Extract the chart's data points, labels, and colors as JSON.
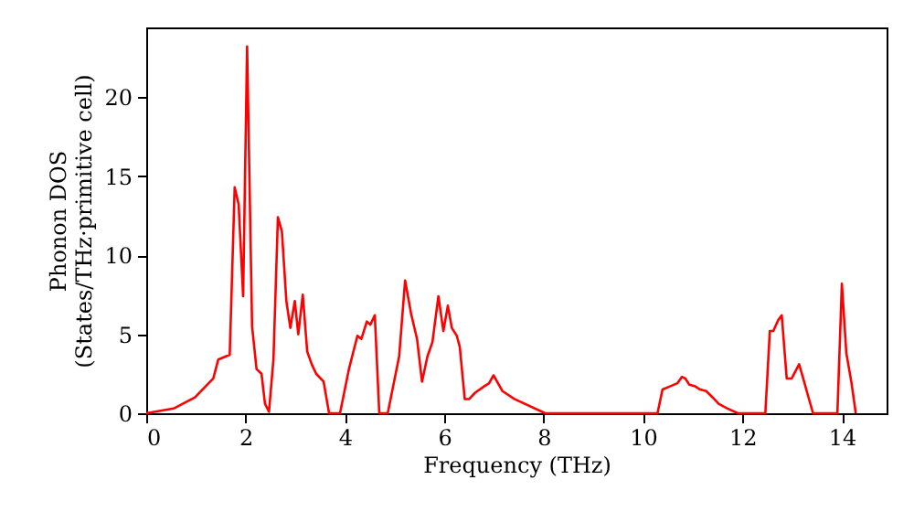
{
  "chart_data": {
    "type": "line",
    "xlabel": "Frequency (THz)",
    "ylabel": "Phonon DOS\n(States/THz·primitive cell)",
    "x": [
      0,
      0.55,
      0.98,
      1.35,
      1.45,
      1.68,
      1.78,
      1.86,
      1.95,
      2.03,
      2.13,
      2.22,
      2.32,
      2.39,
      2.47,
      2.56,
      2.65,
      2.73,
      2.82,
      2.9,
      2.99,
      3.06,
      3.15,
      3.24,
      3.33,
      3.42,
      3.57,
      3.68,
      3.9,
      4.08,
      4.25,
      4.33,
      4.44,
      4.51,
      4.6,
      4.69,
      4.86,
      5.09,
      5.21,
      5.33,
      5.45,
      5.55,
      5.66,
      5.76,
      5.88,
      5.98,
      6.07,
      6.15,
      6.25,
      6.31,
      6.41,
      6.5,
      6.62,
      6.8,
      6.9,
      6.99,
      7.17,
      7.41,
      8.03,
      10.29,
      10.39,
      10.54,
      10.69,
      10.78,
      10.85,
      10.93,
      11.05,
      11.15,
      11.27,
      11.4,
      11.52,
      11.7,
      11.91,
      12.46,
      12.55,
      12.62,
      12.72,
      12.79,
      12.89,
      12.99,
      13.14,
      13.24,
      13.32,
      13.42,
      13.91,
      14.0,
      14.09,
      14.19,
      14.28
    ],
    "series": [
      {
        "color": "#ff0000",
        "values": [
          0,
          0.3,
          1.0,
          2.2,
          3.4,
          3.7,
          14.3,
          13.2,
          7.4,
          23.2,
          5.5,
          2.8,
          2.5,
          0.6,
          0.1,
          3.4,
          12.4,
          11.5,
          7.1,
          5.4,
          7.1,
          5.0,
          7.5,
          3.9,
          3.1,
          2.5,
          2.0,
          0,
          0,
          2.8,
          4.9,
          4.7,
          5.8,
          5.6,
          6.2,
          0,
          0,
          3.6,
          8.4,
          6.3,
          4.7,
          2.0,
          3.6,
          4.5,
          7.4,
          5.2,
          6.8,
          5.4,
          4.9,
          4.2,
          0.9,
          0.9,
          1.3,
          1.7,
          1.9,
          2.4,
          1.4,
          0.9,
          0,
          0,
          1.5,
          1.7,
          1.9,
          2.3,
          2.2,
          1.8,
          1.7,
          1.5,
          1.4,
          1.0,
          0.6,
          0.3,
          0,
          0,
          5.2,
          5.2,
          5.9,
          6.2,
          2.2,
          2.2,
          3.1,
          2.0,
          1.1,
          0,
          0,
          8.2,
          3.8,
          2.0,
          0
        ]
      }
    ],
    "xlim": [
      0,
      14.9
    ],
    "ylim": [
      0,
      24.4
    ],
    "xticks": [
      0,
      2,
      4,
      6,
      8,
      10,
      12,
      14
    ],
    "yticks": [
      0,
      5,
      10,
      15,
      20
    ],
    "grid": false
  }
}
